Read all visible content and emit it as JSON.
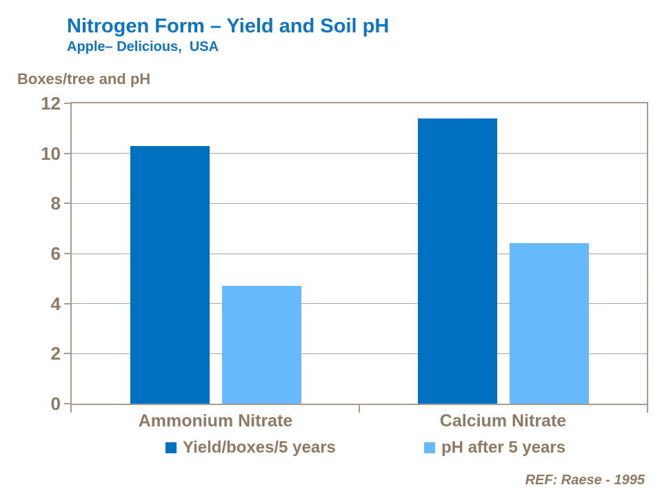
{
  "header": {
    "title": "Nitrogen Form – Yield and Soil pH",
    "subtitle": "Apple– Delicious,  USA",
    "title_color": "#0E74C4"
  },
  "axis_title": "Boxes/tree and pH",
  "footer": {
    "reference": "REF: Raese - 1995"
  },
  "chart_data": {
    "type": "bar",
    "title": "Nitrogen Form – Yield and Soil pH",
    "subtitle": "Apple– Delicious,  USA",
    "ylabel": "Boxes/tree and pH",
    "categories": [
      "Ammonium Nitrate",
      "Calcium Nitrate"
    ],
    "series": [
      {
        "name": "Yield/boxes/5 years",
        "color": "#0070C0",
        "values": [
          10.3,
          11.4
        ]
      },
      {
        "name": "pH after 5 years",
        "color": "#66B9FA",
        "values": [
          4.7,
          6.4
        ]
      }
    ],
    "ylim": [
      0,
      12
    ],
    "yticks": [
      0,
      2,
      4,
      6,
      8,
      10,
      12
    ],
    "grid": true,
    "legend_position": "bottom",
    "annotation": "REF: Raese - 1995",
    "axis_color": "#A89C8E",
    "text_color": "#8C7A64"
  }
}
